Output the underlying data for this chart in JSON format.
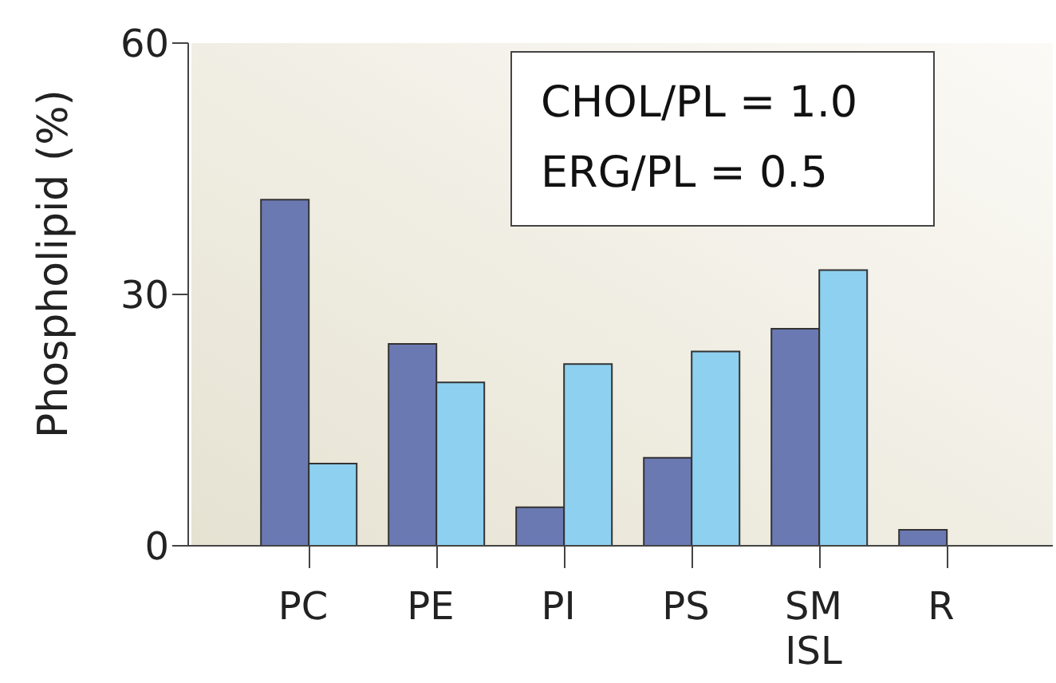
{
  "chart_data": {
    "type": "bar",
    "ylabel": "Phospholipid (%)",
    "categories": [
      "PC",
      "PE",
      "PI",
      "PS",
      "SM\nISL",
      "R"
    ],
    "series": [
      {
        "color": "#6b79b3",
        "values": [
          41.3,
          24.1,
          4.6,
          10.5,
          25.9,
          1.9
        ]
      },
      {
        "color": "#8ed0ef",
        "values": [
          9.8,
          19.5,
          21.7,
          23.2,
          32.9,
          null
        ]
      }
    ],
    "ylim": [
      0,
      60
    ],
    "yticks": [
      0,
      30,
      60
    ],
    "grid": false,
    "legend": false,
    "annotations": [
      "CHOL/PL = 1.0",
      "ERG/PL = 0.5"
    ]
  }
}
